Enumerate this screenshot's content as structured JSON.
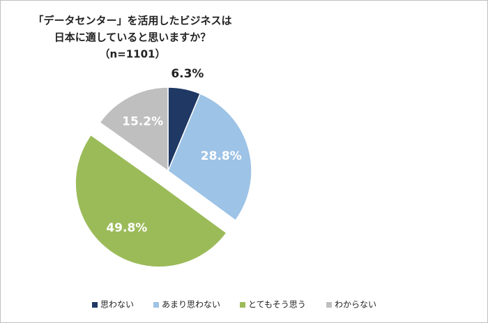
{
  "chart_data": {
    "type": "pie",
    "title": [
      "「データセンター」を活用したビジネスは",
      "日本に適していると思いますか？"
    ],
    "subtitle": "（n=1101）",
    "categories": [
      "思わない",
      "あまり思わない",
      "とてもそう思う",
      "わからない"
    ],
    "values": [
      6.3,
      28.8,
      49.8,
      15.2
    ],
    "value_labels": [
      "6.3%",
      "28.8%",
      "49.8%",
      "15.2%"
    ],
    "colors": [
      "#1f3864",
      "#9dc3e6",
      "#9bbb59",
      "#bfbfbf"
    ],
    "explode": [
      false,
      false,
      true,
      false
    ],
    "legend": "bottom"
  }
}
